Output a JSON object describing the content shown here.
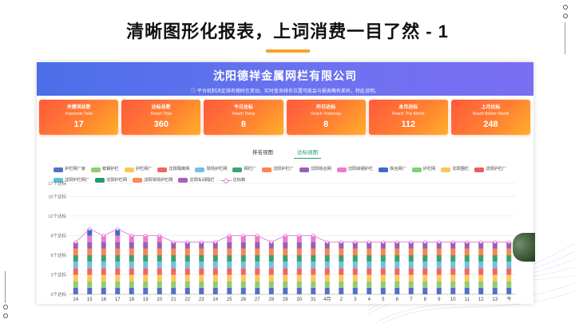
{
  "slide": {
    "title": "清晰图形化报表，上词消费一目了然 - 1"
  },
  "dashboard": {
    "company": "沈阳德祥金属网栏有限公司",
    "notice": "ⓘ 平台机制决定排名随时在变动，实时查询排名位置可能会与报表略有差异，特此说明。",
    "cards": [
      {
        "cn": "关键词总数",
        "en": "Keywords Total",
        "value": "17"
      },
      {
        "cn": "达标总数",
        "en": "Reach Total",
        "value": "360"
      },
      {
        "cn": "今日达标",
        "en": "Reach Today",
        "value": "8"
      },
      {
        "cn": "昨日达标",
        "en": "Reach Yesterday",
        "value": "8"
      },
      {
        "cn": "本月达标",
        "en": "Reach This Month",
        "value": "112"
      },
      {
        "cn": "上月达标",
        "en": "Reach Before Month",
        "value": "248"
      }
    ],
    "tabs": [
      {
        "label": "排名视图",
        "active": false
      },
      {
        "label": "达标视图",
        "active": true
      }
    ]
  },
  "colors": {
    "header_start": "#4a6fe8",
    "header_end": "#7a6ef2",
    "card_start": "#ff5a3c",
    "card_end": "#ffae2a",
    "accent_tab": "#22a06b",
    "title_underline": "#f5a623",
    "line_series": "#e57ad6"
  },
  "chart_data": {
    "type": "bar",
    "stacked": true,
    "yticks": [
      "0个达标",
      "3个达标",
      "6个达标",
      "9个达标",
      "12个达标",
      "15个达标",
      "17个达标"
    ],
    "ylim": [
      0,
      17
    ],
    "categories": [
      "14",
      "15",
      "16",
      "17",
      "18",
      "19",
      "20",
      "21",
      "22",
      "23",
      "24",
      "25",
      "26",
      "27",
      "28",
      "29",
      "30",
      "31",
      "4月",
      "2",
      "3",
      "4",
      "5",
      "6",
      "7",
      "8",
      "9",
      "10",
      "11",
      "12",
      "13",
      "今"
    ],
    "totals": [
      8,
      10,
      9,
      10,
      9,
      9,
      9,
      8,
      8,
      8,
      8,
      9,
      9,
      9,
      8,
      9,
      9,
      9,
      8,
      8,
      8,
      8,
      8,
      8,
      8,
      8,
      8,
      8,
      8,
      8,
      8,
      8
    ],
    "series": [
      {
        "name": "护栏网厂家",
        "color": "#5470c6"
      },
      {
        "name": "蚌钢护栏",
        "color": "#91cc75"
      },
      {
        "name": "护栏网厂",
        "color": "#fac858"
      },
      {
        "name": "沈阳隔离网",
        "color": "#ee6666"
      },
      {
        "name": "球场护栏网",
        "color": "#73c0de"
      },
      {
        "name": "网栏厂",
        "color": "#3ba272"
      },
      {
        "name": "沈阳护栏厂",
        "color": "#fc8452"
      },
      {
        "name": "沈阳铁丝网",
        "color": "#9a60b4"
      },
      {
        "name": "沈阳锌钢护栏",
        "color": "#ea7ccc"
      },
      {
        "name": "铁丝网厂",
        "color": "#4169c8"
      },
      {
        "name": "护栏网",
        "color": "#7ed07a"
      },
      {
        "name": "沈阳围栏",
        "color": "#f7c65a"
      },
      {
        "name": "沈阳护栏厂",
        "color": "#e85d5d"
      },
      {
        "name": "沈阳护栏网厂",
        "color": "#5bc2d9"
      },
      {
        "name": "沈阳护栏网",
        "color": "#1fa06a"
      },
      {
        "name": "沈阳球场护栏网",
        "color": "#f98b52"
      },
      {
        "name": "沈阳车间隔栏",
        "color": "#a65fc0"
      }
    ],
    "line": {
      "name": "达标数",
      "color": "#e57ad6"
    }
  }
}
